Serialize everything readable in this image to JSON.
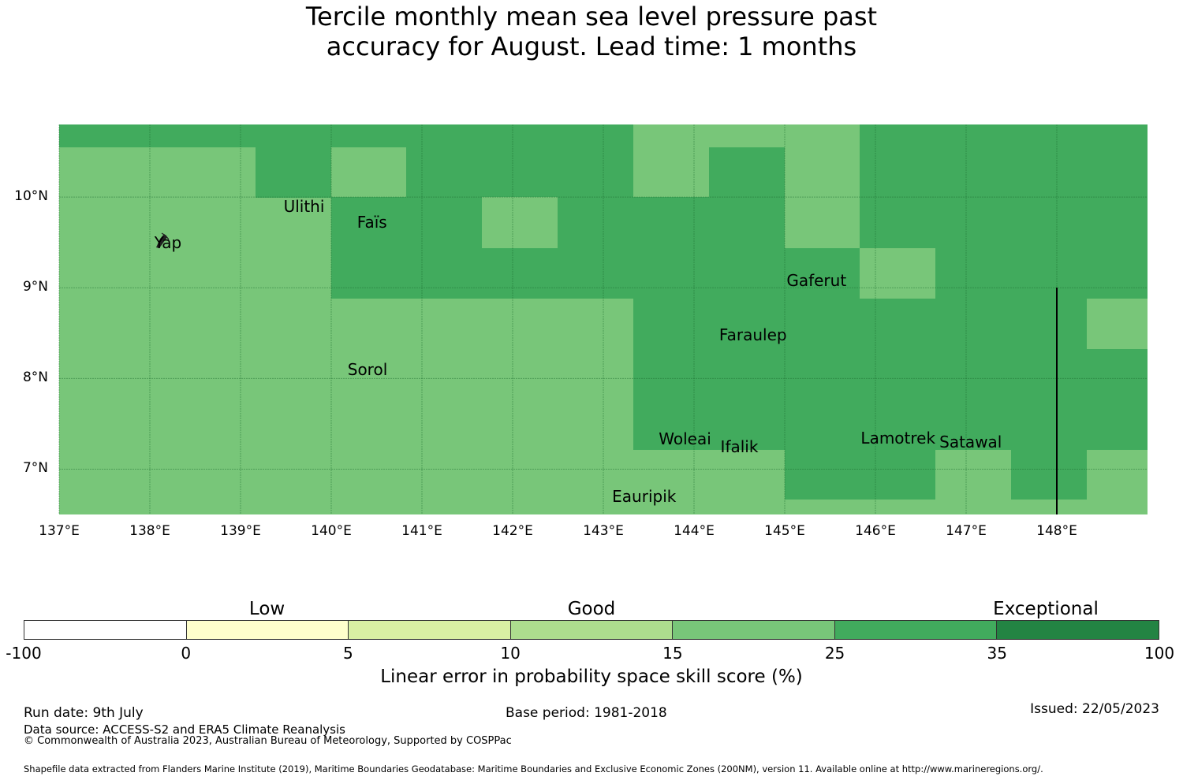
{
  "title": {
    "line1": "Tercile monthly mean sea level pressure past",
    "line2": "accuracy for August. Lead time: 1 months"
  },
  "map": {
    "lat_labels": [
      "10°N",
      "9°N",
      "8°N",
      "7°N"
    ],
    "lat_values": [
      10,
      9,
      8,
      7
    ],
    "lon_labels": [
      "137°E",
      "138°E",
      "139°E",
      "140°E",
      "141°E",
      "142°E",
      "143°E",
      "144°E",
      "145°E",
      "146°E",
      "147°E",
      "148°E"
    ],
    "lon_values": [
      137,
      138,
      139,
      140,
      141,
      142,
      143,
      144,
      145,
      146,
      147,
      148
    ],
    "extent": {
      "lon_min": 137,
      "lon_max": 149,
      "lat_min": 6.5,
      "lat_max": 10.8
    },
    "colors": {
      "light": "#78c679",
      "medium": "#41ab5d",
      "dark": "#238443",
      "grid": "#1a6b2e"
    },
    "places": [
      {
        "name": "Yap",
        "lon": 138.2,
        "lat": 9.5
      },
      {
        "name": "Ulithi",
        "lon": 139.7,
        "lat": 9.9
      },
      {
        "name": "Faïs",
        "lon": 140.45,
        "lat": 9.72
      },
      {
        "name": "Gaferut",
        "lon": 145.35,
        "lat": 9.08
      },
      {
        "name": "Faraulep",
        "lon": 144.65,
        "lat": 8.48
      },
      {
        "name": "Sorol",
        "lon": 140.4,
        "lat": 8.1
      },
      {
        "name": "Woleai",
        "lon": 143.9,
        "lat": 7.33
      },
      {
        "name": "Ifalik",
        "lon": 144.5,
        "lat": 7.25
      },
      {
        "name": "Lamotrek",
        "lon": 146.25,
        "lat": 7.34
      },
      {
        "name": "Satawal",
        "lon": 147.05,
        "lat": 7.3
      },
      {
        "name": "Eauripik",
        "lon": 143.45,
        "lat": 6.7
      }
    ]
  },
  "colorbar": {
    "categories": [
      "Low",
      "Good",
      "Exceptional"
    ],
    "ticks": [
      "-100",
      "0",
      "5",
      "10",
      "15",
      "25",
      "35",
      "100"
    ],
    "colors": [
      "#ffffff",
      "#ffffcc",
      "#d9f0a3",
      "#addd8e",
      "#78c679",
      "#41ab5d",
      "#238443"
    ],
    "label": "Linear error in probability space skill score (%)"
  },
  "footer": {
    "run_date": "Run date: 9th July",
    "base_period": "Base period: 1981-2018",
    "issued": "Issued: 22/05/2023",
    "data_source": "Data source: ACCESS-S2 and ERA5 Climate Reanalysis",
    "copyright": "© Commonwealth of Australia 2023, Australian Bureau of Meteorology, Supported by COSPPac",
    "shapefile": "Shapefile data extracted from Flanders Marine Institute (2019), Maritime Boundaries Geodatabase: Maritime Boundaries and Exclusive Economic Zones (200NM), version 11. Available online at http://www.marineregions.org/."
  }
}
